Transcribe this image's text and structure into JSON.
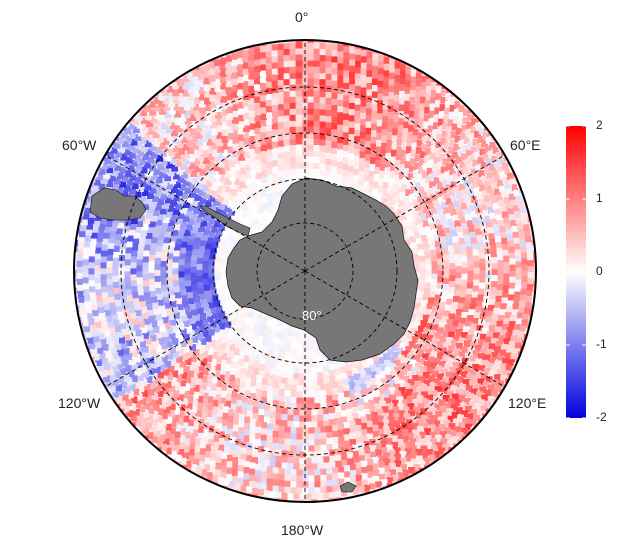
{
  "map": {
    "projection": "south-polar-stereographic",
    "land_color": "#777777",
    "graticule_color": "#000000",
    "colors": {
      "low": "#0000dd",
      "mid": "#ffffff",
      "high": "#ff0000"
    },
    "longitude_labels": [
      {
        "key": "lon_0",
        "text": "0°"
      },
      {
        "key": "lon_60e",
        "text": "60°E"
      },
      {
        "key": "lon_120e",
        "text": "120°E"
      },
      {
        "key": "lon_180",
        "text": "180°W"
      },
      {
        "key": "lon_120w",
        "text": "120°W"
      },
      {
        "key": "lon_60w",
        "text": "60°W"
      }
    ],
    "latitude_label": "80°",
    "colorbar": {
      "min": -2,
      "max": 2,
      "ticks": [
        "2",
        "1",
        "0",
        "-1",
        "-2"
      ]
    }
  }
}
